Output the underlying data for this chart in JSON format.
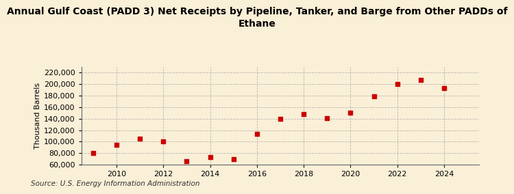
{
  "title": "Annual Gulf Coast (PADD 3) Net Receipts by Pipeline, Tanker, and Barge from Other PADDs of\nEthane",
  "ylabel": "Thousand Barrels",
  "source": "Source: U.S. Energy Information Administration",
  "background_color": "#faefd7",
  "plot_background_color": "#faefd7",
  "marker_color": "#cc0000",
  "years": [
    2009,
    2010,
    2011,
    2012,
    2013,
    2014,
    2015,
    2016,
    2017,
    2018,
    2019,
    2020,
    2021,
    2022,
    2023,
    2024
  ],
  "values": [
    79800,
    95000,
    105000,
    100500,
    66000,
    73000,
    70000,
    113000,
    140000,
    148000,
    141000,
    150000,
    179000,
    200000,
    207000,
    193000
  ],
  "ylim": [
    60000,
    230000
  ],
  "yticks": [
    60000,
    80000,
    100000,
    120000,
    140000,
    160000,
    180000,
    200000,
    220000
  ],
  "xlim": [
    2008.5,
    2025.5
  ],
  "xticks": [
    2010,
    2012,
    2014,
    2016,
    2018,
    2020,
    2022,
    2024
  ],
  "grid_color": "#aaaaaa",
  "title_fontsize": 10,
  "label_fontsize": 8,
  "tick_fontsize": 8,
  "source_fontsize": 7.5
}
